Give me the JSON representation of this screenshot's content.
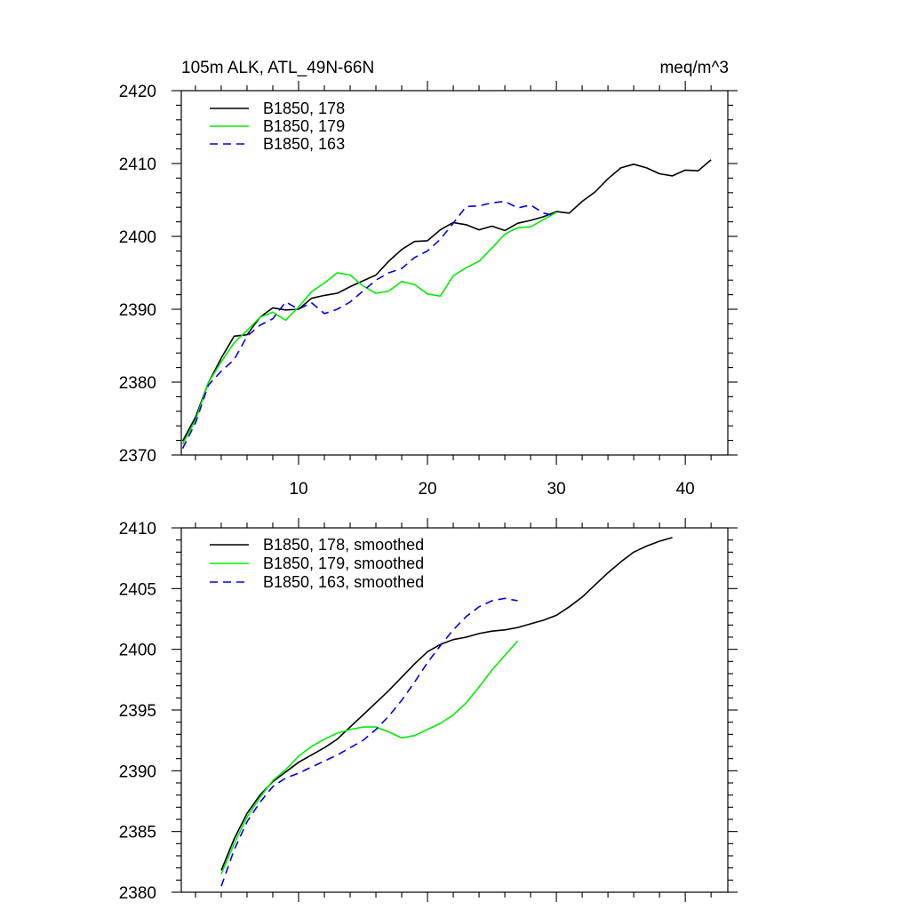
{
  "chart_data": [
    {
      "type": "line",
      "title_left": "105m ALK, ATL_49N-66N",
      "title_right": "meq/m^3",
      "xlim": [
        0.9,
        43.3
      ],
      "ylim": [
        2370,
        2420
      ],
      "xticks": [
        10,
        20,
        30,
        40
      ],
      "xtick_labels": [
        "10",
        "20",
        "30",
        "40"
      ],
      "yticks": [
        2370,
        2380,
        2390,
        2400,
        2410,
        2420
      ],
      "ytick_labels": [
        "2370",
        "2380",
        "2390",
        "2400",
        "2410",
        "2420"
      ],
      "series": [
        {
          "name": "B1850, 178",
          "color": "#000000",
          "dash": "solid",
          "x": [
            1,
            2,
            3,
            4,
            5,
            6,
            7,
            8,
            9,
            10,
            11,
            12,
            13,
            14,
            15,
            16,
            17,
            18,
            19,
            20,
            21,
            22,
            23,
            24,
            25,
            26,
            27,
            28,
            29,
            30,
            31,
            32,
            33,
            34,
            35,
            36,
            37,
            38,
            39,
            40,
            41,
            42
          ],
          "y": [
            2371.9,
            2375.2,
            2379.9,
            2383.3,
            2386.3,
            2386.5,
            2388.9,
            2390.2,
            2389.9,
            2390.0,
            2391.5,
            2391.9,
            2392.2,
            2393.1,
            2393.9,
            2394.7,
            2396.6,
            2398.2,
            2399.3,
            2399.4,
            2400.9,
            2401.9,
            2401.6,
            2400.9,
            2401.4,
            2400.8,
            2401.8,
            2402.2,
            2402.7,
            2403.4,
            2403.2,
            2404.8,
            2406.1,
            2407.9,
            2409.4,
            2409.9,
            2409.4,
            2408.6,
            2408.3,
            2409.1,
            2409.0,
            2410.5
          ]
        },
        {
          "name": "B1850, 179",
          "color": "#00ee00",
          "dash": "solid",
          "x": [
            1,
            2,
            3,
            4,
            5,
            6,
            7,
            8,
            9,
            10,
            11,
            12,
            13,
            14,
            15,
            16,
            17,
            18,
            19,
            20,
            21,
            22,
            23,
            24,
            25,
            26,
            27,
            28,
            29,
            30
          ],
          "y": [
            2371.5,
            2374.8,
            2379.9,
            2382.8,
            2385.4,
            2387.1,
            2388.9,
            2389.6,
            2388.5,
            2390.3,
            2392.4,
            2393.6,
            2395.0,
            2394.7,
            2393.2,
            2392.2,
            2392.5,
            2393.8,
            2393.4,
            2392.1,
            2391.8,
            2394.6,
            2395.7,
            2396.6,
            2398.4,
            2400.3,
            2401.2,
            2401.3,
            2402.3,
            2403.3
          ]
        },
        {
          "name": "B1850, 163",
          "color": "#0000ee",
          "dash": "dashed",
          "x": [
            1,
            2,
            3,
            4,
            5,
            6,
            7,
            8,
            9,
            10,
            11,
            12,
            13,
            14,
            15,
            16,
            17,
            18,
            19,
            20,
            21,
            22,
            23,
            24,
            25,
            26,
            27,
            28,
            29,
            30
          ],
          "y": [
            2370.9,
            2374.4,
            2379.6,
            2381.5,
            2383.1,
            2386.3,
            2387.8,
            2388.7,
            2391.0,
            2390.0,
            2390.9,
            2389.4,
            2390.0,
            2391.0,
            2392.5,
            2394.0,
            2395.0,
            2395.6,
            2397.1,
            2398.0,
            2399.6,
            2401.8,
            2404.1,
            2404.2,
            2404.6,
            2404.8,
            2403.9,
            2404.3,
            2403.2,
            2402.8
          ]
        }
      ],
      "legend": {
        "position": "top-left",
        "entries": [
          "B1850, 178",
          "B1850, 179",
          "B1850, 163"
        ]
      }
    },
    {
      "type": "line",
      "title_left": "",
      "title_right": "",
      "xlim": [
        0.9,
        43.3
      ],
      "ylim": [
        2380,
        2410
      ],
      "xticks": [
        10,
        20,
        30,
        40
      ],
      "xtick_labels": [
        "",
        "",
        "",
        ""
      ],
      "yticks": [
        2380,
        2385,
        2390,
        2395,
        2400,
        2405,
        2410
      ],
      "ytick_labels": [
        "2380",
        "2385",
        "2390",
        "2395",
        "2400",
        "2405",
        "2410"
      ],
      "series": [
        {
          "name": "B1850, 178, smoothed",
          "color": "#000000",
          "dash": "solid",
          "x": [
            4,
            5,
            6,
            7,
            8,
            9,
            10,
            11,
            12,
            13,
            14,
            15,
            16,
            17,
            18,
            19,
            20,
            21,
            22,
            23,
            24,
            25,
            26,
            27,
            28,
            29,
            30,
            31,
            32,
            33,
            34,
            35,
            36,
            37,
            38,
            39
          ],
          "y": [
            2381.8,
            2384.4,
            2386.5,
            2388.0,
            2389.1,
            2389.9,
            2390.7,
            2391.3,
            2391.9,
            2392.6,
            2393.6,
            2394.6,
            2395.6,
            2396.6,
            2397.7,
            2398.8,
            2399.8,
            2400.4,
            2400.8,
            2401.0,
            2401.3,
            2401.5,
            2401.6,
            2401.8,
            2402.1,
            2402.4,
            2402.8,
            2403.5,
            2404.3,
            2405.3,
            2406.3,
            2407.2,
            2408.0,
            2408.5,
            2408.9,
            2409.2
          ]
        },
        {
          "name": "B1850, 179, smoothed",
          "color": "#00ee00",
          "dash": "solid",
          "x": [
            4,
            5,
            6,
            7,
            8,
            9,
            10,
            11,
            12,
            13,
            14,
            15,
            16,
            17,
            18,
            19,
            20,
            21,
            22,
            23,
            24,
            25,
            26,
            27
          ],
          "y": [
            2381.5,
            2384.0,
            2386.2,
            2387.8,
            2389.2,
            2390.1,
            2391.2,
            2392.0,
            2392.6,
            2393.1,
            2393.4,
            2393.6,
            2393.6,
            2393.2,
            2392.7,
            2392.9,
            2393.4,
            2393.9,
            2394.6,
            2395.6,
            2396.9,
            2398.3,
            2399.5,
            2400.7
          ]
        },
        {
          "name": "B1850, 163, smoothed",
          "color": "#0000ee",
          "dash": "dashed",
          "x": [
            4,
            5,
            6,
            7,
            8,
            9,
            10,
            11,
            12,
            13,
            14,
            15,
            16,
            17,
            18,
            19,
            20,
            21,
            22,
            23,
            24,
            25,
            26,
            27
          ],
          "y": [
            2380.5,
            2383.5,
            2385.8,
            2387.4,
            2388.7,
            2389.4,
            2389.8,
            2390.3,
            2390.8,
            2391.3,
            2391.9,
            2392.5,
            2393.4,
            2394.5,
            2395.8,
            2397.3,
            2398.9,
            2400.3,
            2401.6,
            2402.7,
            2403.5,
            2404.0,
            2404.2,
            2404.0
          ]
        }
      ],
      "legend": {
        "position": "top-left",
        "entries": [
          "B1850, 178, smoothed",
          "B1850, 179, smoothed",
          "B1850, 163, smoothed"
        ]
      }
    }
  ]
}
